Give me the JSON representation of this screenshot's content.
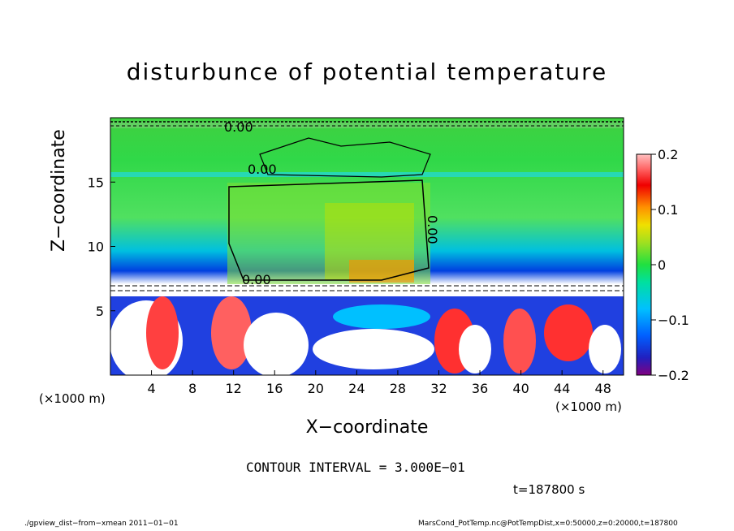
{
  "chart_data": {
    "type": "heatmap",
    "title": "disturbunce of potential temperature",
    "xlabel": "X−coordinate",
    "ylabel": "Z−coordinate",
    "x_unit_label_left": "(×1000 m)",
    "x_unit_label_right": "(×1000 m)",
    "x_ticks": [
      "4",
      "8",
      "12",
      "16",
      "20",
      "24",
      "28",
      "32",
      "36",
      "40",
      "44",
      "48"
    ],
    "y_ticks": [
      "5",
      "10",
      "15"
    ],
    "xlim": [
      0,
      50
    ],
    "ylim": [
      0,
      20
    ],
    "colorbar": {
      "ticks": [
        "0.2",
        "0.1",
        "0",
        "−0.1",
        "−0.2"
      ],
      "range": [
        -0.2,
        0.2
      ],
      "colors": [
        "#800080",
        "#3020c8",
        "#0050ff",
        "#00a0ff",
        "#00e0e0",
        "#00e0a0",
        "#20e040",
        "#80e020",
        "#c0e000",
        "#f0d000",
        "#ff9000",
        "#ff4000",
        "#e00000",
        "#ff6060",
        "#ffb0b0"
      ]
    },
    "contour_labels": [
      "0.00",
      "0.00",
      "0.00",
      "0.00"
    ],
    "contour_interval": "CONTOUR INTERVAL = 3.000E−01",
    "time": "t=187800 s",
    "grid": false
  },
  "footer": {
    "left": "./gpview_dist−from−xmean   2011−01−01",
    "right": "MarsCond_PotTemp.nc@PotTempDist,x=0:50000,z=0:20000,t=187800"
  }
}
